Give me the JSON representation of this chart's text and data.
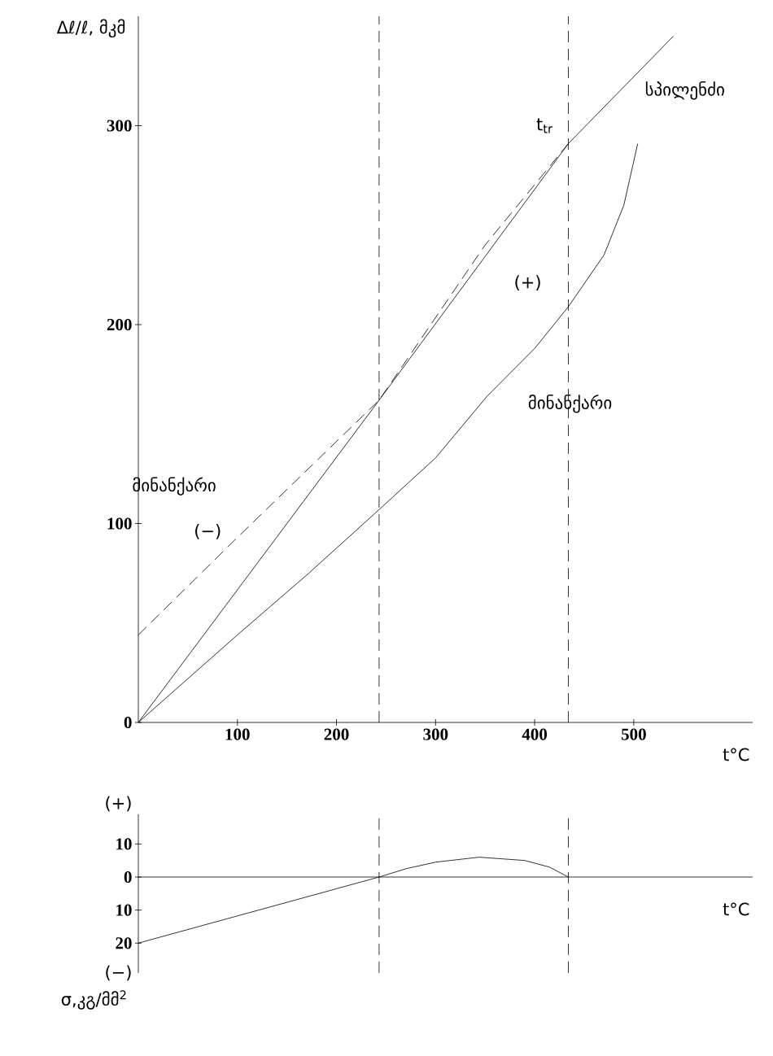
{
  "chart_data": [
    {
      "type": "line",
      "ylabel": "Δℓ/ℓ, მკმ",
      "xlabel": "t°C",
      "xlim": [
        0,
        620
      ],
      "ylim": [
        0,
        355
      ],
      "xticks": [
        100,
        200,
        300,
        400,
        500
      ],
      "yticks": [
        0,
        100,
        200,
        300
      ],
      "series": [
        {
          "name": "სპილენძი",
          "color": "#000000",
          "line_style": "solid",
          "x": [
            0,
            243,
            434,
            540
          ],
          "values": [
            0,
            162,
            291,
            345
          ]
        },
        {
          "name": "მინანქარი",
          "color": "#000000",
          "line_style": "solid",
          "x": [
            0,
            100,
            172,
            243,
            300,
            352,
            400,
            434,
            470,
            490,
            504
          ],
          "values": [
            0,
            44,
            75,
            107,
            133,
            164,
            188,
            209,
            235,
            260,
            291
          ]
        },
        {
          "name": "მინანქარი",
          "color": "#000000",
          "line_style": "dashed",
          "x": [
            0,
            100,
            243,
            350,
            434
          ],
          "values": [
            44,
            93,
            162,
            240,
            291
          ]
        }
      ],
      "ref_lines": [
        {
          "axis": "x",
          "value": 243,
          "line_style": "dashed"
        },
        {
          "axis": "x",
          "value": 434,
          "line_style": "dashed"
        }
      ],
      "annotations": [
        {
          "text": "t$_{tr}$",
          "x": 410,
          "y": 300
        },
        {
          "text": "(+)",
          "x": 393,
          "y": 221
        },
        {
          "text": "(−)",
          "x": 70,
          "y": 96
        }
      ]
    },
    {
      "type": "line",
      "ylabel": "σ,კგ/მმ$^{2}$",
      "xlabel": "t°C",
      "tick_labels": "y",
      "xlim": [
        0,
        620
      ],
      "ylim": [
        -29,
        19
      ],
      "yticks": [
        {
          "value": -20,
          "label": "20"
        },
        {
          "value": -10,
          "label": "10"
        },
        0,
        10
      ],
      "series": [
        {
          "color": "#000000",
          "line_style": "solid",
          "x": [
            0,
            243,
            270,
            300,
            344,
            390,
            415,
            434
          ],
          "values": [
            -20,
            0,
            2.5,
            4.5,
            6,
            5,
            3,
            0
          ]
        }
      ],
      "ref_lines": [
        {
          "axis": "x",
          "value": 243,
          "line_style": "dashed"
        },
        {
          "axis": "x",
          "value": 434,
          "line_style": "dashed"
        }
      ],
      "annotations": [
        "(+)",
        "(−)"
      ]
    }
  ]
}
